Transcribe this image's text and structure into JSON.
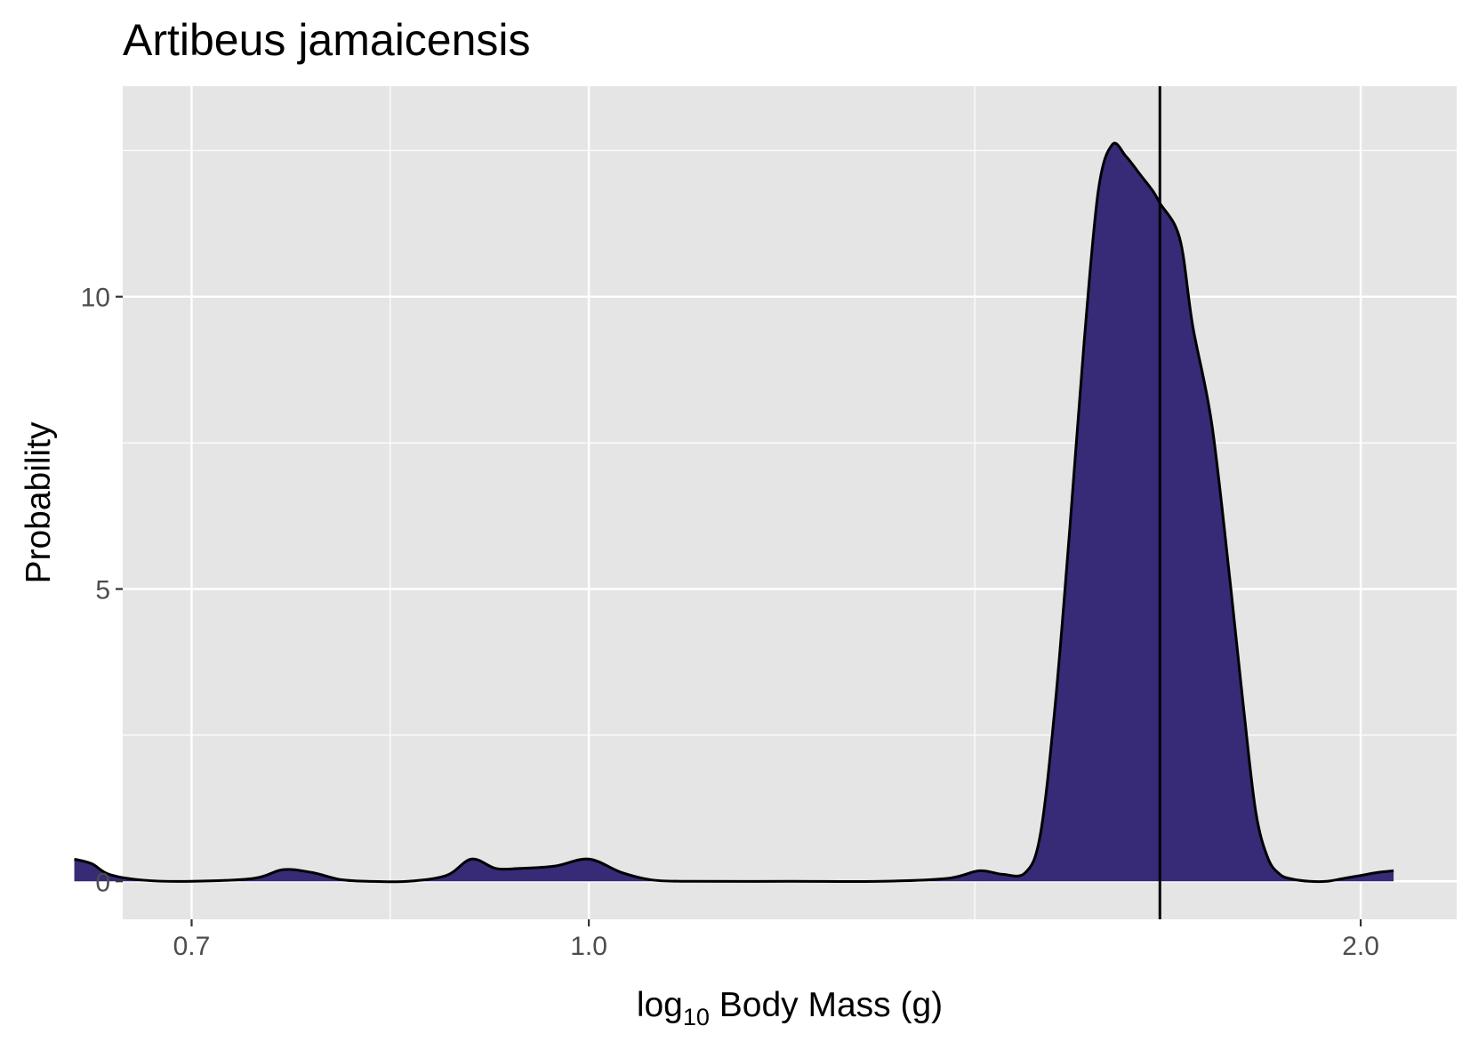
{
  "chart_data": {
    "type": "area",
    "title": "Artibeus jamaicensis",
    "xlabel_main": "log",
    "xlabel_sub": "10",
    "xlabel_rest": " Body Mass (g)",
    "ylabel": "Probability",
    "x_scale": "log10",
    "xlim": [
      0.658,
      2.18
    ],
    "ylim": [
      -0.65,
      13.6
    ],
    "x_ticks": [
      {
        "value": 0.7,
        "label": "0.7"
      },
      {
        "value": 1.0,
        "label": "1.0"
      },
      {
        "value": 2.0,
        "label": "2.0"
      }
    ],
    "y_ticks": [
      {
        "value": 0,
        "label": "0"
      },
      {
        "value": 5,
        "label": "5"
      },
      {
        "value": 10,
        "label": "10"
      }
    ],
    "grid": true,
    "vline_x": 1.67,
    "fill_color": "#372a76",
    "line_color": "#000000",
    "panel_color": "#e5e5e5",
    "series": [
      {
        "x": [
          0.63,
          0.64,
          0.65,
          0.67,
          0.7,
          0.74,
          0.76,
          0.78,
          0.8,
          0.82,
          0.85,
          0.88,
          0.9,
          0.92,
          0.94,
          0.97,
          1.0,
          1.03,
          1.06,
          1.1,
          1.2,
          1.3,
          1.38,
          1.42,
          1.45,
          1.48,
          1.5,
          1.52,
          1.54,
          1.56,
          1.58,
          1.6,
          1.62,
          1.64,
          1.66,
          1.67,
          1.7,
          1.72,
          1.75,
          1.78,
          1.8,
          1.82,
          1.84,
          1.86,
          1.88,
          1.91,
          1.94,
          1.97,
          2.0,
          2.03,
          2.06
        ],
        "y": [
          0.38,
          0.3,
          0.12,
          0.02,
          0.0,
          0.05,
          0.2,
          0.15,
          0.03,
          0.0,
          0.0,
          0.1,
          0.38,
          0.22,
          0.22,
          0.26,
          0.38,
          0.15,
          0.02,
          0.0,
          0.0,
          0.0,
          0.05,
          0.18,
          0.12,
          0.15,
          0.8,
          3.0,
          6.0,
          9.2,
          11.8,
          12.6,
          12.4,
          12.1,
          11.8,
          11.6,
          11.0,
          9.5,
          7.8,
          5.0,
          3.0,
          1.2,
          0.4,
          0.12,
          0.04,
          0.0,
          0.0,
          0.05,
          0.1,
          0.15,
          0.18
        ]
      }
    ]
  }
}
